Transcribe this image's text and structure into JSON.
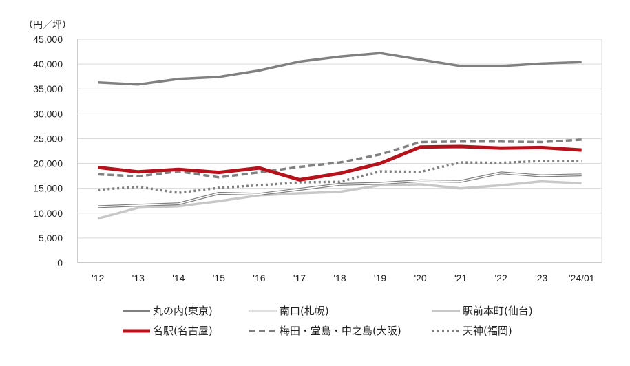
{
  "chart_data": {
    "type": "line",
    "unit_label": "（円／坪）",
    "categories": [
      "'12",
      "'13",
      "'14",
      "'15",
      "'16",
      "'17",
      "'18",
      "'19",
      "'20",
      "'21",
      "'22",
      "'23",
      "'24/01"
    ],
    "ylim": [
      0,
      45000
    ],
    "yticks": [
      0,
      5000,
      10000,
      15000,
      20000,
      25000,
      30000,
      35000,
      40000,
      45000
    ],
    "ytick_labels": [
      "0",
      "5,000",
      "10,000",
      "15,000",
      "20,000",
      "25,000",
      "30,000",
      "35,000",
      "40,000",
      "45,000"
    ],
    "grid": true,
    "legend_position": "bottom",
    "series": [
      {
        "name": "丸の内(東京)",
        "style": "solid-thick",
        "color": "#808080",
        "values": [
          36300,
          35900,
          37000,
          37400,
          38700,
          40500,
          41500,
          42200,
          40900,
          39600,
          39600,
          40100,
          40400
        ]
      },
      {
        "name": "南口(札幌)",
        "style": "double",
        "color": "#808080",
        "values": [
          11300,
          11600,
          11900,
          14000,
          13800,
          14800,
          15800,
          16000,
          16500,
          16400,
          18100,
          17500,
          17700
        ]
      },
      {
        "name": "駅前本町(仙台)",
        "style": "solid-light",
        "color": "#c8c8c8",
        "values": [
          8900,
          11100,
          11400,
          12400,
          13600,
          14000,
          14300,
          15600,
          15800,
          15000,
          15600,
          16400,
          16000
        ]
      },
      {
        "name": "名駅(名古屋)",
        "style": "solid-red",
        "color": "#b5121b",
        "values": [
          19200,
          18300,
          18800,
          18200,
          19100,
          16700,
          18000,
          20000,
          23300,
          23400,
          23100,
          23200,
          22700
        ]
      },
      {
        "name": "梅田・堂島・中之島(大阪)",
        "style": "dashed",
        "color": "#808080",
        "values": [
          17800,
          17400,
          18400,
          17200,
          18200,
          19300,
          20200,
          21800,
          24300,
          24400,
          24400,
          24300,
          24800
        ]
      },
      {
        "name": "天神(福岡)",
        "style": "dotted",
        "color": "#808080",
        "values": [
          14700,
          15300,
          14100,
          15100,
          15600,
          16200,
          16300,
          18400,
          18300,
          20200,
          20100,
          20500,
          20500
        ]
      }
    ]
  }
}
